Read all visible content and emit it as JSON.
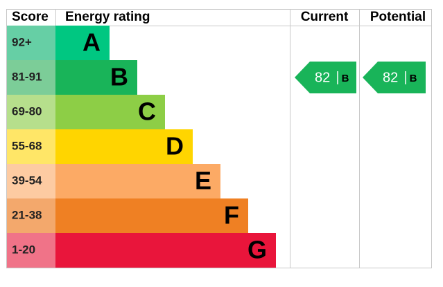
{
  "header": {
    "score": "Score",
    "rating": "Energy rating",
    "current": "Current",
    "potential": "Potential"
  },
  "bands": [
    {
      "range": "92+",
      "letter": "A",
      "color": "#00c781",
      "light": "#66cfa5"
    },
    {
      "range": "81-91",
      "letter": "B",
      "color": "#19b459",
      "light": "#7ccd98"
    },
    {
      "range": "69-80",
      "letter": "C",
      "color": "#8dce46",
      "light": "#b6df8c"
    },
    {
      "range": "55-68",
      "letter": "D",
      "color": "#ffd500",
      "light": "#ffe667"
    },
    {
      "range": "39-54",
      "letter": "E",
      "color": "#fcaa65",
      "light": "#fdcba2"
    },
    {
      "range": "21-38",
      "letter": "F",
      "color": "#ef8023",
      "light": "#f3a86c"
    },
    {
      "range": "1-20",
      "letter": "G",
      "color": "#e9153b",
      "light": "#f07388"
    }
  ],
  "current": {
    "score": 82,
    "letter": "B",
    "color": "#19b459"
  },
  "potential": {
    "score": 82,
    "letter": "B",
    "color": "#19b459"
  }
}
